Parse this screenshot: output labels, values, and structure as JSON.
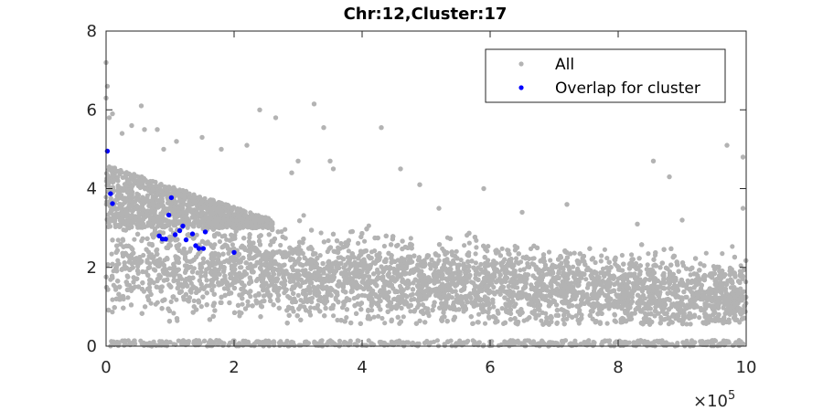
{
  "chart_data": {
    "type": "scatter",
    "title": "Chr:12,Cluster:17",
    "xlabel": "",
    "ylabel": "",
    "x_multiplier_label": "×10",
    "x_multiplier_exponent": "5",
    "xlim": [
      0,
      10
    ],
    "ylim": [
      0,
      8
    ],
    "x_ticks": [
      0,
      2,
      4,
      6,
      8,
      10
    ],
    "y_ticks": [
      0,
      2,
      4,
      6,
      8
    ],
    "x_tick_labels": [
      "0",
      "2",
      "4",
      "6",
      "8",
      "10"
    ],
    "y_tick_labels": [
      "0",
      "2",
      "4",
      "6",
      "8"
    ],
    "grid": false,
    "legend_position": "top-right",
    "series": [
      {
        "name": "All",
        "color": "#b3b3b3",
        "description_of_density": "dense cloud, mostly between y 0.7 and 3.5 near x=0, tapering to 0.7-2.3 near x=10, sparse outliers up to 7.2 and a band near y=0",
        "points": [
          [
            0.0,
            7.2
          ],
          [
            0.0,
            6.3
          ],
          [
            0.02,
            6.6
          ],
          [
            0.05,
            5.8
          ],
          [
            0.1,
            5.9
          ],
          [
            0.25,
            5.4
          ],
          [
            0.4,
            5.6
          ],
          [
            0.6,
            5.5
          ],
          [
            0.8,
            5.5
          ],
          [
            0.55,
            6.1
          ],
          [
            0.9,
            5.0
          ],
          [
            1.1,
            5.2
          ],
          [
            1.5,
            5.3
          ],
          [
            1.8,
            5.0
          ],
          [
            2.2,
            5.1
          ],
          [
            2.4,
            6.0
          ],
          [
            2.65,
            5.8
          ],
          [
            3.25,
            6.15
          ],
          [
            3.4,
            5.55
          ],
          [
            4.3,
            5.55
          ],
          [
            3.0,
            4.7
          ],
          [
            3.5,
            4.7
          ],
          [
            3.55,
            4.5
          ],
          [
            2.9,
            4.4
          ],
          [
            4.6,
            4.5
          ],
          [
            4.9,
            4.1
          ],
          [
            5.9,
            4.0
          ],
          [
            7.2,
            3.6
          ],
          [
            8.55,
            4.7
          ],
          [
            8.8,
            4.3
          ],
          [
            9.7,
            5.1
          ],
          [
            9.95,
            4.8
          ],
          [
            9.95,
            3.5
          ],
          [
            8.3,
            3.1
          ],
          [
            9.0,
            3.2
          ],
          [
            6.5,
            3.4
          ],
          [
            5.2,
            3.5
          ],
          [
            0.2,
            0.05
          ],
          [
            1.0,
            0.1
          ],
          [
            2.5,
            0.05
          ],
          [
            4.0,
            0.02
          ],
          [
            5.5,
            0.05
          ],
          [
            7.0,
            0.04
          ],
          [
            8.5,
            0.03
          ],
          [
            9.8,
            0.02
          ]
        ]
      },
      {
        "name": "Overlap for cluster",
        "color": "#0000ff",
        "points": [
          [
            0.02,
            4.95
          ],
          [
            0.07,
            3.87
          ],
          [
            0.1,
            3.62
          ],
          [
            0.98,
            3.33
          ],
          [
            1.02,
            3.77
          ],
          [
            1.08,
            2.83
          ],
          [
            1.15,
            2.93
          ],
          [
            1.2,
            3.05
          ],
          [
            1.25,
            2.7
          ],
          [
            1.35,
            2.85
          ],
          [
            1.4,
            2.55
          ],
          [
            1.45,
            2.48
          ],
          [
            1.52,
            2.48
          ],
          [
            1.55,
            2.9
          ],
          [
            0.83,
            2.8
          ],
          [
            0.88,
            2.72
          ],
          [
            0.93,
            2.72
          ],
          [
            2.0,
            2.38
          ]
        ]
      }
    ]
  }
}
